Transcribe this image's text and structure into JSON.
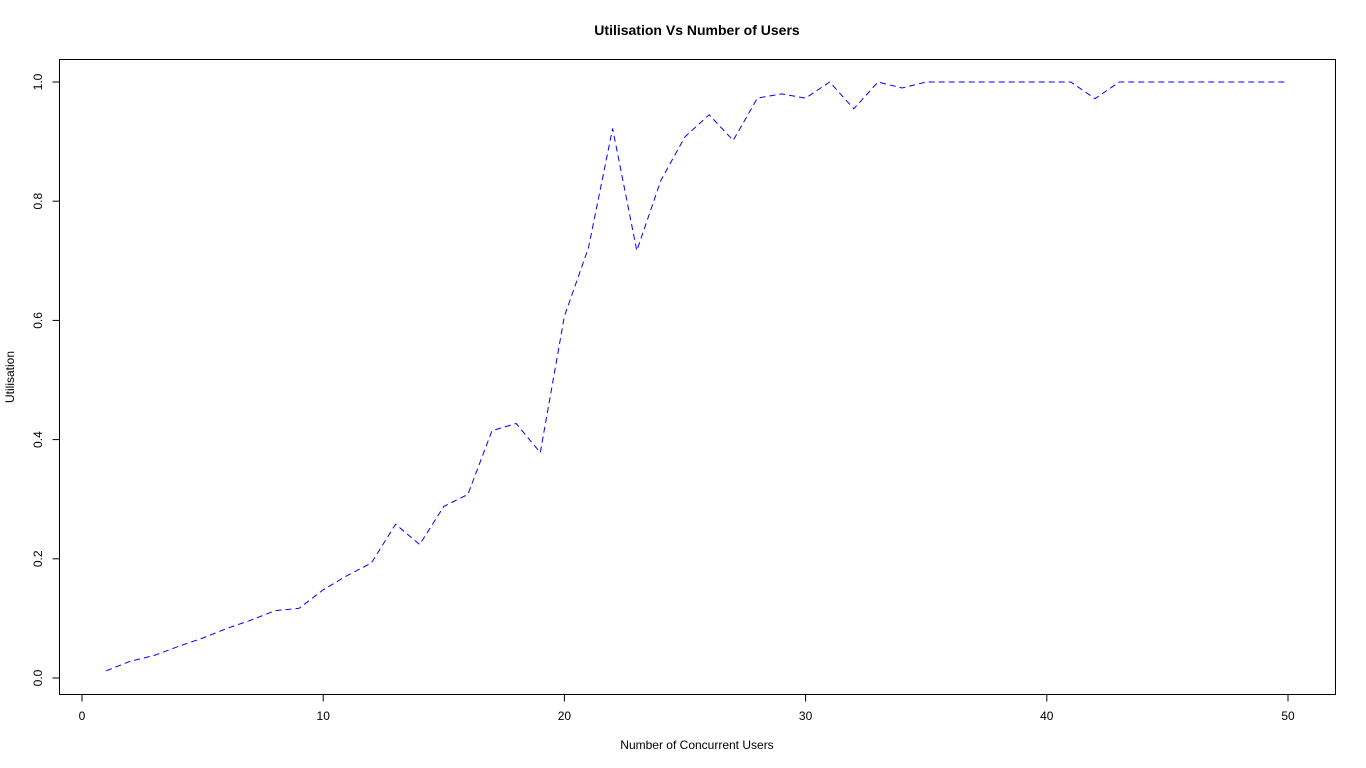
{
  "chart_data": {
    "type": "line",
    "title": "Utilisation Vs Number of Users",
    "xlabel": "Number of Concurrent Users",
    "ylabel": "Utilisation",
    "xlim": [
      0,
      52
    ],
    "ylim": [
      0,
      1
    ],
    "x_ticks": [
      0,
      10,
      20,
      30,
      40,
      50
    ],
    "y_ticks": [
      0.0,
      0.2,
      0.4,
      0.6,
      0.8,
      1.0
    ],
    "x_tick_labels": [
      "0",
      "10",
      "20",
      "30",
      "40",
      "50"
    ],
    "y_tick_labels": [
      "0.0",
      "0.2",
      "0.4",
      "0.6",
      "0.8",
      "1.0"
    ],
    "grid": false,
    "series": [
      {
        "color": "#0000ff",
        "line_style": "dashed",
        "x": [
          1,
          2,
          3,
          4,
          5,
          6,
          7,
          8,
          9,
          10,
          11,
          12,
          13,
          14,
          15,
          16,
          17,
          18,
          19,
          20,
          21,
          22,
          23,
          24,
          25,
          26,
          27,
          28,
          29,
          30,
          31,
          32,
          33,
          34,
          35,
          36,
          37,
          38,
          39,
          40,
          41,
          42,
          43,
          44,
          45,
          46,
          47,
          48,
          49,
          50
        ],
        "y": [
          0.012,
          0.028,
          0.038,
          0.053,
          0.067,
          0.083,
          0.097,
          0.113,
          0.117,
          0.148,
          0.172,
          0.193,
          0.258,
          0.224,
          0.288,
          0.308,
          0.415,
          0.427,
          0.378,
          0.607,
          0.722,
          0.922,
          0.717,
          0.835,
          0.908,
          0.945,
          0.902,
          0.973,
          0.98,
          0.973,
          1.0,
          0.955,
          1.0,
          0.99,
          1.0,
          1.0,
          1.0,
          1.0,
          1.0,
          1.0,
          1.0,
          0.972,
          1.0,
          1.0,
          1.0,
          1.0,
          1.0,
          1.0,
          1.0,
          1.0
        ]
      }
    ]
  }
}
